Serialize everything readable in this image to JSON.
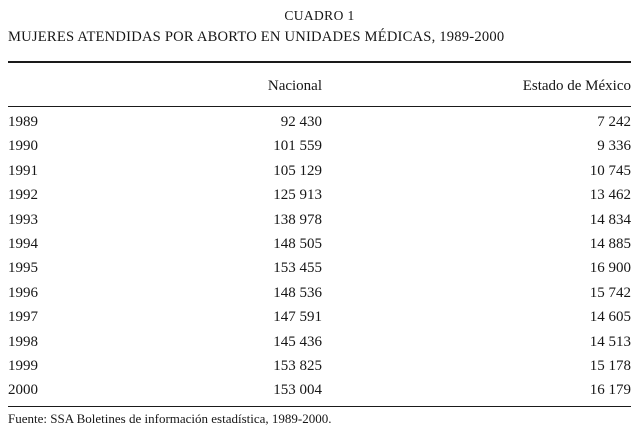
{
  "document": {
    "kicker": "CUADRO 1",
    "title": "MUJERES ATENDIDAS POR ABORTO EN UNIDADES MÉDICAS, 1989-2000",
    "source": "Fuente: SSA Boletines de información estadística, 1989-2000."
  },
  "table": {
    "headers": {
      "year": "",
      "nacional": "Nacional",
      "estado": "Estado de México"
    },
    "rows": [
      {
        "year": "1989",
        "nacional": "92 430",
        "estado": "7 242"
      },
      {
        "year": "1990",
        "nacional": "101 559",
        "estado": "9 336"
      },
      {
        "year": "1991",
        "nacional": "105 129",
        "estado": "10 745"
      },
      {
        "year": "1992",
        "nacional": "125 913",
        "estado": "13 462"
      },
      {
        "year": "1993",
        "nacional": "138 978",
        "estado": "14 834"
      },
      {
        "year": "1994",
        "nacional": "148 505",
        "estado": "14 885"
      },
      {
        "year": "1995",
        "nacional": "153 455",
        "estado": "16 900"
      },
      {
        "year": "1996",
        "nacional": "148 536",
        "estado": "15 742"
      },
      {
        "year": "1997",
        "nacional": "147 591",
        "estado": "14 605"
      },
      {
        "year": "1998",
        "nacional": "145 436",
        "estado": "14 513"
      },
      {
        "year": "1999",
        "nacional": "153 825",
        "estado": "15 178"
      },
      {
        "year": "2000",
        "nacional": "153 004",
        "estado": "16 179"
      }
    ]
  },
  "chart_data": {
    "type": "table",
    "title": "CUADRO 1 — MUJERES ATENDIDAS POR ABORTO EN UNIDADES MÉDICAS, 1989-2000",
    "categories": [
      "1989",
      "1990",
      "1991",
      "1992",
      "1993",
      "1994",
      "1995",
      "1996",
      "1997",
      "1998",
      "1999",
      "2000"
    ],
    "series": [
      {
        "name": "Nacional",
        "values": [
          92430,
          101559,
          105129,
          125913,
          138978,
          148505,
          153455,
          148536,
          147591,
          145436,
          153825,
          153004
        ]
      },
      {
        "name": "Estado de México",
        "values": [
          7242,
          9336,
          10745,
          13462,
          14834,
          14885,
          16900,
          15742,
          14605,
          14513,
          15178,
          16179
        ]
      }
    ],
    "source": "Fuente: SSA Boletines de información estadística, 1989-2000."
  }
}
